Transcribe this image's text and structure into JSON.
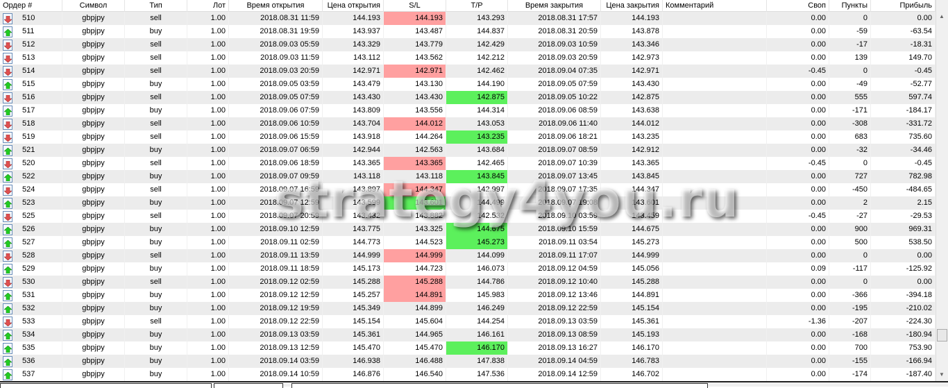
{
  "columns": [
    "Ордер #",
    "Символ",
    "Тип",
    "Лот",
    "Время открытия",
    "Цена открытия",
    "S/L",
    "T/P",
    "Время закрытия",
    "Цена закрытия",
    "Комментарий",
    "Своп",
    "Пункты",
    "Прибыль"
  ],
  "colors": {
    "sl_hit": "#ffa0a0",
    "tp_hit": "#5cf05c",
    "alt_row": "#ececec",
    "buy_icon": "#22cc22",
    "sell_icon": "#e05050"
  },
  "watermark": "strategy4you.ru",
  "rows": [
    {
      "order": "510",
      "symbol": "gbpjpy",
      "type": "sell",
      "lot": "1.00",
      "open_time": "2018.08.31 11:59",
      "open_price": "144.193",
      "sl": "144.193",
      "tp": "143.293",
      "close_time": "2018.08.31 17:57",
      "close_price": "144.193",
      "comment": "",
      "swap": "0.00",
      "points": "0",
      "profit": "0.00",
      "hl_sl": "red",
      "hl_tp": ""
    },
    {
      "order": "511",
      "symbol": "gbpjpy",
      "type": "buy",
      "lot": "1.00",
      "open_time": "2018.08.31 19:59",
      "open_price": "143.937",
      "sl": "143.487",
      "tp": "144.837",
      "close_time": "2018.08.31 20:59",
      "close_price": "143.878",
      "comment": "",
      "swap": "0.00",
      "points": "-59",
      "profit": "-63.54",
      "hl_sl": "",
      "hl_tp": ""
    },
    {
      "order": "512",
      "symbol": "gbpjpy",
      "type": "sell",
      "lot": "1.00",
      "open_time": "2018.09.03 05:59",
      "open_price": "143.329",
      "sl": "143.779",
      "tp": "142.429",
      "close_time": "2018.09.03 10:59",
      "close_price": "143.346",
      "comment": "",
      "swap": "0.00",
      "points": "-17",
      "profit": "-18.31",
      "hl_sl": "",
      "hl_tp": ""
    },
    {
      "order": "513",
      "symbol": "gbpjpy",
      "type": "sell",
      "lot": "1.00",
      "open_time": "2018.09.03 11:59",
      "open_price": "143.112",
      "sl": "143.562",
      "tp": "142.212",
      "close_time": "2018.09.03 20:59",
      "close_price": "142.973",
      "comment": "",
      "swap": "0.00",
      "points": "139",
      "profit": "149.70",
      "hl_sl": "",
      "hl_tp": ""
    },
    {
      "order": "514",
      "symbol": "gbpjpy",
      "type": "sell",
      "lot": "1.00",
      "open_time": "2018.09.03 20:59",
      "open_price": "142.971",
      "sl": "142.971",
      "tp": "142.462",
      "close_time": "2018.09.04 07:35",
      "close_price": "142.971",
      "comment": "",
      "swap": "-0.45",
      "points": "0",
      "profit": "-0.45",
      "hl_sl": "red",
      "hl_tp": ""
    },
    {
      "order": "515",
      "symbol": "gbpjpy",
      "type": "buy",
      "lot": "1.00",
      "open_time": "2018.09.05 03:59",
      "open_price": "143.479",
      "sl": "143.130",
      "tp": "144.190",
      "close_time": "2018.09.05 07:59",
      "close_price": "143.430",
      "comment": "",
      "swap": "0.00",
      "points": "-49",
      "profit": "-52.77",
      "hl_sl": "",
      "hl_tp": ""
    },
    {
      "order": "516",
      "symbol": "gbpjpy",
      "type": "sell",
      "lot": "1.00",
      "open_time": "2018.09.05 07:59",
      "open_price": "143.430",
      "sl": "143.430",
      "tp": "142.875",
      "close_time": "2018.09.05 10:22",
      "close_price": "142.875",
      "comment": "",
      "swap": "0.00",
      "points": "555",
      "profit": "597.74",
      "hl_sl": "",
      "hl_tp": "green"
    },
    {
      "order": "517",
      "symbol": "gbpjpy",
      "type": "buy",
      "lot": "1.00",
      "open_time": "2018.09.06 07:59",
      "open_price": "143.809",
      "sl": "143.556",
      "tp": "144.314",
      "close_time": "2018.09.06 08:59",
      "close_price": "143.638",
      "comment": "",
      "swap": "0.00",
      "points": "-171",
      "profit": "-184.17",
      "hl_sl": "",
      "hl_tp": ""
    },
    {
      "order": "518",
      "symbol": "gbpjpy",
      "type": "sell",
      "lot": "1.00",
      "open_time": "2018.09.06 10:59",
      "open_price": "143.704",
      "sl": "144.012",
      "tp": "143.053",
      "close_time": "2018.09.06 11:40",
      "close_price": "144.012",
      "comment": "",
      "swap": "0.00",
      "points": "-308",
      "profit": "-331.72",
      "hl_sl": "red",
      "hl_tp": ""
    },
    {
      "order": "519",
      "symbol": "gbpjpy",
      "type": "sell",
      "lot": "1.00",
      "open_time": "2018.09.06 15:59",
      "open_price": "143.918",
      "sl": "144.264",
      "tp": "143.235",
      "close_time": "2018.09.06 18:21",
      "close_price": "143.235",
      "comment": "",
      "swap": "0.00",
      "points": "683",
      "profit": "735.60",
      "hl_sl": "",
      "hl_tp": "green"
    },
    {
      "order": "521",
      "symbol": "gbpjpy",
      "type": "buy",
      "lot": "1.00",
      "open_time": "2018.09.07 06:59",
      "open_price": "142.944",
      "sl": "142.563",
      "tp": "143.684",
      "close_time": "2018.09.07 08:59",
      "close_price": "142.912",
      "comment": "",
      "swap": "0.00",
      "points": "-32",
      "profit": "-34.46",
      "hl_sl": "",
      "hl_tp": ""
    },
    {
      "order": "520",
      "symbol": "gbpjpy",
      "type": "sell",
      "lot": "1.00",
      "open_time": "2018.09.06 18:59",
      "open_price": "143.365",
      "sl": "143.365",
      "tp": "142.465",
      "close_time": "2018.09.07 10:39",
      "close_price": "143.365",
      "comment": "",
      "swap": "-0.45",
      "points": "0",
      "profit": "-0.45",
      "hl_sl": "red",
      "hl_tp": ""
    },
    {
      "order": "522",
      "symbol": "gbpjpy",
      "type": "buy",
      "lot": "1.00",
      "open_time": "2018.09.07 09:59",
      "open_price": "143.118",
      "sl": "143.118",
      "tp": "143.845",
      "close_time": "2018.09.07 13:45",
      "close_price": "143.845",
      "comment": "",
      "swap": "0.00",
      "points": "727",
      "profit": "782.98",
      "hl_sl": "",
      "hl_tp": "green"
    },
    {
      "order": "524",
      "symbol": "gbpjpy",
      "type": "sell",
      "lot": "1.00",
      "open_time": "2018.09.07 16:59",
      "open_price": "143.897",
      "sl": "144.347",
      "tp": "142.997",
      "close_time": "2018.09.07 17:35",
      "close_price": "144.347",
      "comment": "",
      "swap": "0.00",
      "points": "-450",
      "profit": "-484.65",
      "hl_sl": "red",
      "hl_tp": ""
    },
    {
      "order": "523",
      "symbol": "gbpjpy",
      "type": "buy",
      "lot": "1.00",
      "open_time": "2018.09.07 12:59",
      "open_price": "143.599",
      "sl": "143.601",
      "tp": "144.499",
      "close_time": "2018.09.07 19:08",
      "close_price": "143.601",
      "comment": "",
      "swap": "0.00",
      "points": "2",
      "profit": "2.15",
      "hl_sl": "green",
      "hl_tp": ""
    },
    {
      "order": "525",
      "symbol": "gbpjpy",
      "type": "sell",
      "lot": "1.00",
      "open_time": "2018.09.07 20:59",
      "open_price": "143.432",
      "sl": "143.882",
      "tp": "142.532",
      "close_time": "2018.09.10 03:59",
      "close_price": "143.459",
      "comment": "",
      "swap": "-0.45",
      "points": "-27",
      "profit": "-29.53",
      "hl_sl": "",
      "hl_tp": ""
    },
    {
      "order": "526",
      "symbol": "gbpjpy",
      "type": "buy",
      "lot": "1.00",
      "open_time": "2018.09.10 12:59",
      "open_price": "143.775",
      "sl": "143.325",
      "tp": "144.675",
      "close_time": "2018.09.10 15:59",
      "close_price": "144.675",
      "comment": "",
      "swap": "0.00",
      "points": "900",
      "profit": "969.31",
      "hl_sl": "",
      "hl_tp": "green"
    },
    {
      "order": "527",
      "symbol": "gbpjpy",
      "type": "buy",
      "lot": "1.00",
      "open_time": "2018.09.11 02:59",
      "open_price": "144.773",
      "sl": "144.523",
      "tp": "145.273",
      "close_time": "2018.09.11 03:54",
      "close_price": "145.273",
      "comment": "",
      "swap": "0.00",
      "points": "500",
      "profit": "538.50",
      "hl_sl": "",
      "hl_tp": "green"
    },
    {
      "order": "528",
      "symbol": "gbpjpy",
      "type": "sell",
      "lot": "1.00",
      "open_time": "2018.09.11 13:59",
      "open_price": "144.999",
      "sl": "144.999",
      "tp": "144.099",
      "close_time": "2018.09.11 17:07",
      "close_price": "144.999",
      "comment": "",
      "swap": "0.00",
      "points": "0",
      "profit": "0.00",
      "hl_sl": "red",
      "hl_tp": ""
    },
    {
      "order": "529",
      "symbol": "gbpjpy",
      "type": "buy",
      "lot": "1.00",
      "open_time": "2018.09.11 18:59",
      "open_price": "145.173",
      "sl": "144.723",
      "tp": "146.073",
      "close_time": "2018.09.12 04:59",
      "close_price": "145.056",
      "comment": "",
      "swap": "0.09",
      "points": "-117",
      "profit": "-125.92",
      "hl_sl": "",
      "hl_tp": ""
    },
    {
      "order": "530",
      "symbol": "gbpjpy",
      "type": "sell",
      "lot": "1.00",
      "open_time": "2018.09.12 02:59",
      "open_price": "145.288",
      "sl": "145.288",
      "tp": "144.786",
      "close_time": "2018.09.12 10:40",
      "close_price": "145.288",
      "comment": "",
      "swap": "0.00",
      "points": "0",
      "profit": "0.00",
      "hl_sl": "red",
      "hl_tp": ""
    },
    {
      "order": "531",
      "symbol": "gbpjpy",
      "type": "buy",
      "lot": "1.00",
      "open_time": "2018.09.12 12:59",
      "open_price": "145.257",
      "sl": "144.891",
      "tp": "145.983",
      "close_time": "2018.09.12 13:46",
      "close_price": "144.891",
      "comment": "",
      "swap": "0.00",
      "points": "-366",
      "profit": "-394.18",
      "hl_sl": "red",
      "hl_tp": ""
    },
    {
      "order": "532",
      "symbol": "gbpjpy",
      "type": "buy",
      "lot": "1.00",
      "open_time": "2018.09.12 19:59",
      "open_price": "145.349",
      "sl": "144.899",
      "tp": "146.249",
      "close_time": "2018.09.12 22:59",
      "close_price": "145.154",
      "comment": "",
      "swap": "0.00",
      "points": "-195",
      "profit": "-210.02",
      "hl_sl": "",
      "hl_tp": ""
    },
    {
      "order": "533",
      "symbol": "gbpjpy",
      "type": "sell",
      "lot": "1.00",
      "open_time": "2018.09.12 22:59",
      "open_price": "145.154",
      "sl": "145.604",
      "tp": "144.254",
      "close_time": "2018.09.13 03:59",
      "close_price": "145.361",
      "comment": "",
      "swap": "-1.36",
      "points": "-207",
      "profit": "-224.30",
      "hl_sl": "",
      "hl_tp": ""
    },
    {
      "order": "534",
      "symbol": "gbpjpy",
      "type": "buy",
      "lot": "1.00",
      "open_time": "2018.09.13 03:59",
      "open_price": "145.361",
      "sl": "144.965",
      "tp": "146.161",
      "close_time": "2018.09.13 08:59",
      "close_price": "145.193",
      "comment": "",
      "swap": "0.00",
      "points": "-168",
      "profit": "-180.94",
      "hl_sl": "",
      "hl_tp": ""
    },
    {
      "order": "535",
      "symbol": "gbpjpy",
      "type": "buy",
      "lot": "1.00",
      "open_time": "2018.09.13 12:59",
      "open_price": "145.470",
      "sl": "145.470",
      "tp": "146.170",
      "close_time": "2018.09.13 16:27",
      "close_price": "146.170",
      "comment": "",
      "swap": "0.00",
      "points": "700",
      "profit": "753.90",
      "hl_sl": "",
      "hl_tp": "green"
    },
    {
      "order": "536",
      "symbol": "gbpjpy",
      "type": "buy",
      "lot": "1.00",
      "open_time": "2018.09.14 03:59",
      "open_price": "146.938",
      "sl": "146.488",
      "tp": "147.838",
      "close_time": "2018.09.14 04:59",
      "close_price": "146.783",
      "comment": "",
      "swap": "0.00",
      "points": "-155",
      "profit": "-166.94",
      "hl_sl": "",
      "hl_tp": ""
    },
    {
      "order": "537",
      "symbol": "gbpjpy",
      "type": "buy",
      "lot": "1.00",
      "open_time": "2018.09.14 10:59",
      "open_price": "146.876",
      "sl": "146.540",
      "tp": "147.536",
      "close_time": "2018.09.14 12:59",
      "close_price": "146.702",
      "comment": "",
      "swap": "0.00",
      "points": "-174",
      "profit": "-187.40",
      "hl_sl": "",
      "hl_tp": ""
    }
  ]
}
